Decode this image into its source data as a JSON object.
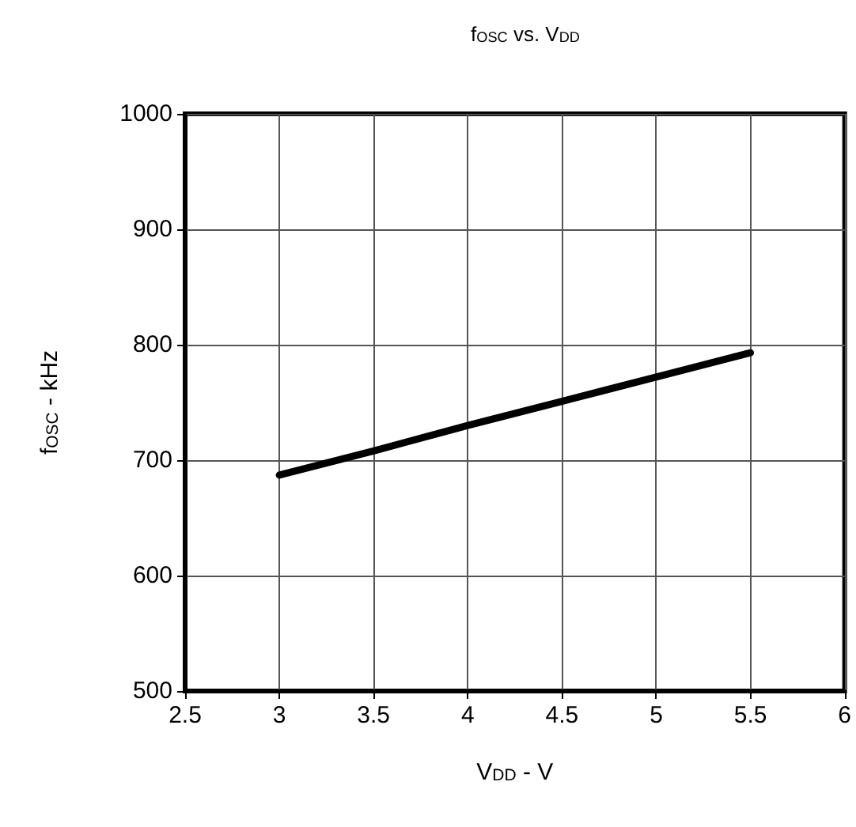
{
  "chart_data": {
    "type": "line",
    "title": "f$_{OSC}$ vs. V$_{DD}$",
    "xlabel": "V$_{DD}$ - V",
    "ylabel": "f$_{OSC}$ - kHz",
    "x": [
      3,
      3.5,
      4,
      4.5,
      5,
      5.5
    ],
    "series": [
      {
        "color": "#000000",
        "values": [
          687,
          708,
          730,
          751,
          772,
          793
        ]
      }
    ],
    "xlim": [
      2.5,
      6
    ],
    "xticks": [
      2.5,
      3,
      3.5,
      4,
      4.5,
      5,
      5.5,
      6
    ],
    "ylim": [
      500,
      1000
    ],
    "yticks": [
      500,
      600,
      700,
      800,
      900,
      1000
    ],
    "grid": true,
    "marker": "none",
    "line_style": "solid"
  }
}
